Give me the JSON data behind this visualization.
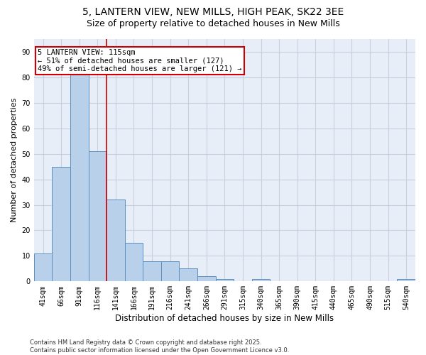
{
  "title_line1": "5, LANTERN VIEW, NEW MILLS, HIGH PEAK, SK22 3EE",
  "title_line2": "Size of property relative to detached houses in New Mills",
  "xlabel": "Distribution of detached houses by size in New Mills",
  "ylabel": "Number of detached properties",
  "categories": [
    "41sqm",
    "66sqm",
    "91sqm",
    "116sqm",
    "141sqm",
    "166sqm",
    "191sqm",
    "216sqm",
    "241sqm",
    "266sqm",
    "291sqm",
    "315sqm",
    "340sqm",
    "365sqm",
    "390sqm",
    "415sqm",
    "440sqm",
    "465sqm",
    "490sqm",
    "515sqm",
    "540sqm"
  ],
  "values": [
    11,
    45,
    83,
    51,
    32,
    15,
    8,
    8,
    5,
    2,
    1,
    0,
    1,
    0,
    0,
    0,
    0,
    0,
    0,
    0,
    1
  ],
  "bar_color": "#b8d0ea",
  "bar_edge_color": "#5a8fc0",
  "red_line_x": 3,
  "annotation_text": "5 LANTERN VIEW: 115sqm\n← 51% of detached houses are smaller (127)\n49% of semi-detached houses are larger (121) →",
  "annotation_box_color": "#ffffff",
  "annotation_box_edge": "#cc0000",
  "red_line_color": "#cc0000",
  "ylim": [
    0,
    95
  ],
  "yticks": [
    0,
    10,
    20,
    30,
    40,
    50,
    60,
    70,
    80,
    90
  ],
  "grid_color": "#c8d0e0",
  "bg_color": "#e8eef8",
  "footer_text": "Contains HM Land Registry data © Crown copyright and database right 2025.\nContains public sector information licensed under the Open Government Licence v3.0.",
  "title_fontsize": 10,
  "subtitle_fontsize": 9,
  "tick_fontsize": 7,
  "ylabel_fontsize": 8,
  "xlabel_fontsize": 8.5,
  "annotation_fontsize": 7.5,
  "footer_fontsize": 6
}
